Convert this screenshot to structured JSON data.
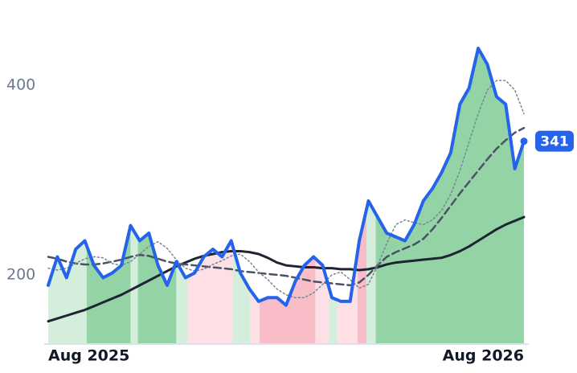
{
  "chart_data": {
    "type": "line",
    "x": [
      0,
      1,
      2,
      3,
      4,
      5,
      6,
      7,
      8,
      9,
      10,
      11,
      12,
      13,
      14,
      15,
      16,
      17,
      18,
      19,
      20,
      21,
      22,
      23,
      24,
      25,
      26,
      27,
      28,
      29,
      30,
      31,
      32,
      33,
      34,
      35,
      36,
      37,
      38,
      39,
      40,
      41,
      42,
      43,
      44,
      45,
      46,
      47,
      48,
      49,
      50,
      51,
      52
    ],
    "xlim": [
      0,
      52
    ],
    "xticks": [
      {
        "value": 0,
        "label": "Aug 2025"
      },
      {
        "value": 52,
        "label": "Aug 2026"
      }
    ],
    "ylim": [
      127,
      473
    ],
    "yticks": [
      200,
      400
    ],
    "series": [
      {
        "color": "#2563eb",
        "style": "solid",
        "width": 4,
        "values": [
          189,
          219,
          197,
          227,
          236,
          210,
          197,
          202,
          210,
          252,
          236,
          244,
          210,
          189,
          214,
          197,
          202,
          219,
          227,
          219,
          236,
          202,
          185,
          172,
          176,
          176,
          168,
          193,
          210,
          219,
          210,
          176,
          172,
          172,
          236,
          278,
          261,
          244,
          240,
          236,
          253,
          278,
          291,
          308,
          329,
          380,
          397,
          439,
          422,
          388,
          380,
          312,
          341
        ]
      },
      {
        "color": "#7b8494",
        "style": "dotted",
        "width": 1.5,
        "values": [
          207,
          205,
          207,
          212,
          217,
          219,
          218,
          212,
          210,
          214,
          222,
          230,
          235,
          228,
          216,
          207,
          204,
          206,
          211,
          215,
          220,
          222,
          214,
          203,
          195,
          185,
          179,
          176,
          176,
          181,
          190,
          200,
          203,
          195,
          186,
          190,
          210,
          233,
          253,
          258,
          255,
          253,
          258,
          268,
          285,
          310,
          340,
          370,
          395,
          405,
          405,
          395,
          370
        ]
      },
      {
        "color": "#4a5263",
        "style": "dashed",
        "width": 2.5,
        "values": [
          219,
          217,
          214,
          212,
          211,
          211,
          212,
          214,
          216,
          219,
          221,
          220,
          217,
          214,
          212,
          211,
          210,
          209,
          208,
          207,
          206,
          204,
          203,
          202,
          201,
          200,
          199,
          197,
          195,
          193,
          192,
          191,
          190,
          189,
          192,
          200,
          210,
          219,
          224,
          228,
          232,
          238,
          248,
          260,
          273,
          286,
          298,
          310,
          322,
          333,
          342,
          350,
          355
        ]
      },
      {
        "color": "#1e2433",
        "style": "solid",
        "width": 3,
        "values": [
          151,
          154,
          157,
          160,
          163,
          167,
          171,
          175,
          179,
          184,
          189,
          194,
          199,
          204,
          209,
          213,
          217,
          220,
          222,
          224,
          225,
          225,
          224,
          222,
          218,
          213,
          210,
          209,
          208,
          208,
          207,
          207,
          206,
          206,
          205,
          206,
          208,
          211,
          213,
          214,
          215,
          216,
          217,
          218,
          221,
          225,
          230,
          236,
          242,
          248,
          253,
          257,
          261
        ]
      }
    ],
    "regimes": [
      {
        "from": 0,
        "to": 4.2,
        "color": "#d5eedc"
      },
      {
        "from": 4.2,
        "to": 9,
        "color": "#93d3a6"
      },
      {
        "from": 9,
        "to": 9.8,
        "color": "#d5eedc"
      },
      {
        "from": 9.8,
        "to": 14,
        "color": "#93d3a6"
      },
      {
        "from": 14,
        "to": 15.2,
        "color": "#d5eedc"
      },
      {
        "from": 15.2,
        "to": 20.2,
        "color": "#fde0e5"
      },
      {
        "from": 20.2,
        "to": 22.1,
        "color": "#d5eedc"
      },
      {
        "from": 22.1,
        "to": 23.1,
        "color": "#fde0e5"
      },
      {
        "from": 23.1,
        "to": 29.2,
        "color": "#f8bdc7"
      },
      {
        "from": 29.2,
        "to": 30.7,
        "color": "#fde0e5"
      },
      {
        "from": 30.7,
        "to": 31.6,
        "color": "#d5eedc"
      },
      {
        "from": 31.6,
        "to": 33.8,
        "color": "#fde0e5"
      },
      {
        "from": 33.8,
        "to": 34.8,
        "color": "#f8bdc7"
      },
      {
        "from": 34.8,
        "to": 35.8,
        "color": "#d5eedc"
      },
      {
        "from": 35.8,
        "to": 52,
        "color": "#93d3a6"
      }
    ]
  }
}
